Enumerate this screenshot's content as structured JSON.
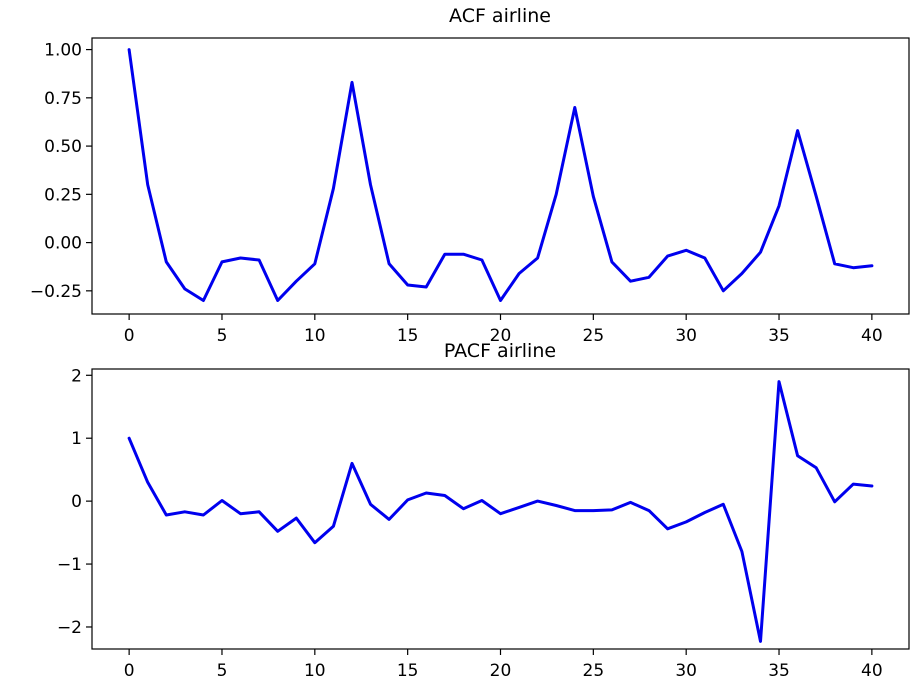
{
  "chart_data": [
    {
      "type": "line",
      "title": "ACF airline",
      "xlabel": "",
      "ylabel": "",
      "xlim": [
        -2,
        42
      ],
      "ylim": [
        -0.37,
        1.06
      ],
      "xticks": [
        0,
        5,
        10,
        15,
        20,
        25,
        30,
        35,
        40
      ],
      "xtick_labels": [
        "0",
        "5",
        "10",
        "15",
        "20",
        "25",
        "30",
        "35",
        "40"
      ],
      "yticks": [
        -0.25,
        0,
        0.25,
        0.5,
        0.75,
        1.0
      ],
      "ytick_labels": [
        "−0.25",
        "0.00",
        "0.25",
        "0.50",
        "0.75",
        "1.00"
      ],
      "grid": false,
      "color": "#0000ee",
      "x": [
        0,
        1,
        2,
        3,
        4,
        5,
        6,
        7,
        8,
        9,
        10,
        11,
        12,
        13,
        14,
        15,
        16,
        17,
        18,
        19,
        20,
        21,
        22,
        23,
        24,
        25,
        26,
        27,
        28,
        29,
        30,
        31,
        32,
        33,
        34,
        35,
        36,
        37,
        38,
        39,
        40
      ],
      "y": [
        1.0,
        0.3,
        -0.1,
        -0.24,
        -0.3,
        -0.1,
        -0.08,
        -0.09,
        -0.3,
        -0.2,
        -0.11,
        0.28,
        0.83,
        0.3,
        -0.11,
        -0.22,
        -0.23,
        -0.06,
        -0.06,
        -0.09,
        -0.3,
        -0.16,
        -0.08,
        0.25,
        0.7,
        0.24,
        -0.1,
        -0.2,
        -0.18,
        -0.07,
        -0.04,
        -0.08,
        -0.25,
        -0.16,
        -0.05,
        0.19,
        0.58,
        0.24,
        -0.11,
        -0.13,
        -0.12
      ]
    },
    {
      "type": "line",
      "title": "PACF airline",
      "xlabel": "",
      "ylabel": "",
      "xlim": [
        -2,
        42
      ],
      "ylim": [
        -2.35,
        2.1
      ],
      "xticks": [
        0,
        5,
        10,
        15,
        20,
        25,
        30,
        35,
        40
      ],
      "xtick_labels": [
        "0",
        "5",
        "10",
        "15",
        "20",
        "25",
        "30",
        "35",
        "40"
      ],
      "yticks": [
        -2,
        -1,
        0,
        1,
        2
      ],
      "ytick_labels": [
        "−2",
        "−1",
        "0",
        "1",
        "2"
      ],
      "grid": false,
      "color": "#0000ee",
      "x": [
        0,
        1,
        2,
        3,
        4,
        5,
        6,
        7,
        8,
        9,
        10,
        11,
        12,
        13,
        14,
        15,
        16,
        17,
        18,
        19,
        20,
        21,
        22,
        23,
        24,
        25,
        26,
        27,
        28,
        29,
        30,
        31,
        32,
        33,
        34,
        35,
        36,
        37,
        38,
        39,
        40
      ],
      "y": [
        1.0,
        0.3,
        -0.22,
        -0.17,
        -0.22,
        0.01,
        -0.2,
        -0.17,
        -0.48,
        -0.27,
        -0.66,
        -0.4,
        0.6,
        -0.05,
        -0.29,
        0.02,
        0.13,
        0.09,
        -0.12,
        0.01,
        -0.2,
        -0.1,
        0.0,
        -0.07,
        -0.15,
        -0.15,
        -0.14,
        -0.02,
        -0.15,
        -0.44,
        -0.33,
        -0.18,
        -0.05,
        -0.8,
        -2.23,
        1.9,
        0.72,
        0.53,
        -0.01,
        0.27,
        0.24
      ]
    }
  ]
}
